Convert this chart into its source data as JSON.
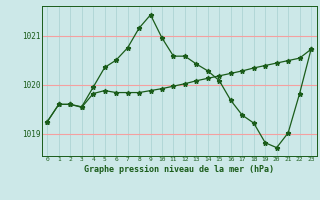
{
  "title": "Graphe pression niveau de la mer (hPa)",
  "bg_color": "#cce8e8",
  "line_color": "#1a5c1a",
  "vgrid_color": "#aed4d4",
  "hgrid_color": "#f4a0a0",
  "xlim": [
    -0.5,
    23.5
  ],
  "ylim": [
    1018.55,
    1021.6
  ],
  "yticks": [
    1019,
    1020,
    1021
  ],
  "xticks": [
    0,
    1,
    2,
    3,
    4,
    5,
    6,
    7,
    8,
    9,
    10,
    11,
    12,
    13,
    14,
    15,
    16,
    17,
    18,
    19,
    20,
    21,
    22,
    23
  ],
  "series1_x": [
    0,
    1,
    2,
    3,
    4,
    5,
    6,
    7,
    8,
    9,
    10,
    11,
    12,
    13,
    14,
    15,
    16,
    17,
    18,
    19,
    20,
    21,
    22,
    23
  ],
  "series1_y": [
    1019.25,
    1019.6,
    1019.6,
    1019.55,
    1019.95,
    1020.35,
    1020.5,
    1020.75,
    1021.15,
    1021.42,
    1020.95,
    1020.58,
    1020.58,
    1020.42,
    1020.28,
    1020.08,
    1019.68,
    1019.38,
    1019.22,
    1018.82,
    1018.72,
    1019.02,
    1019.82,
    1020.72
  ],
  "series2_x": [
    0,
    1,
    2,
    3,
    4,
    5,
    6,
    7,
    8,
    9,
    10,
    11,
    12,
    13,
    14,
    15,
    16,
    17,
    18,
    19,
    20,
    21,
    22,
    23
  ],
  "series2_y": [
    1019.25,
    1019.6,
    1019.6,
    1019.54,
    1019.82,
    1019.88,
    1019.84,
    1019.84,
    1019.84,
    1019.88,
    1019.92,
    1019.97,
    1020.02,
    1020.08,
    1020.13,
    1020.18,
    1020.23,
    1020.28,
    1020.34,
    1020.39,
    1020.44,
    1020.49,
    1020.54,
    1020.72
  ]
}
